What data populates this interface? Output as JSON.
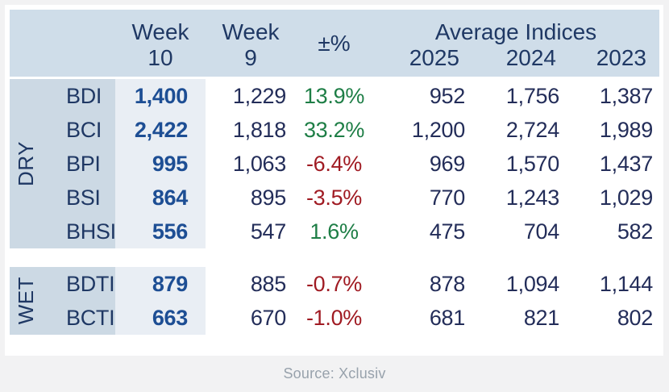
{
  "chart_data": {
    "type": "table",
    "header": {
      "week_cols": [
        {
          "line1": "Week",
          "line2": "10"
        },
        {
          "line1": "Week",
          "line2": "9"
        }
      ],
      "pct_label": "±%",
      "avg_title": "Average Indices",
      "avg_years": [
        "2025",
        "2024",
        "2023"
      ]
    },
    "groups": [
      {
        "name": "DRY",
        "rows": [
          {
            "label": "BDI",
            "week10": "1,400",
            "week9": "1,229",
            "pct": "13.9%",
            "direction": "positive",
            "avg": [
              "952",
              "1,756",
              "1,387"
            ]
          },
          {
            "label": "BCI",
            "week10": "2,422",
            "week9": "1,818",
            "pct": "33.2%",
            "direction": "positive",
            "avg": [
              "1,200",
              "2,724",
              "1,989"
            ]
          },
          {
            "label": "BPI",
            "week10": "995",
            "week9": "1,063",
            "pct": "-6.4%",
            "direction": "negative",
            "avg": [
              "969",
              "1,570",
              "1,437"
            ]
          },
          {
            "label": "BSI",
            "week10": "864",
            "week9": "895",
            "pct": "-3.5%",
            "direction": "negative",
            "avg": [
              "770",
              "1,243",
              "1,029"
            ]
          },
          {
            "label": "BHSI",
            "week10": "556",
            "week9": "547",
            "pct": "1.6%",
            "direction": "positive",
            "avg": [
              "475",
              "704",
              "582"
            ]
          }
        ]
      },
      {
        "name": "WET",
        "rows": [
          {
            "label": "BDTI",
            "week10": "879",
            "week9": "885",
            "pct": "-0.7%",
            "direction": "negative",
            "avg": [
              "878",
              "1,094",
              "1,144"
            ]
          },
          {
            "label": "BCTI",
            "week10": "663",
            "week9": "670",
            "pct": "-1.0%",
            "direction": "negative",
            "avg": [
              "681",
              "821",
              "802"
            ]
          }
        ]
      }
    ]
  },
  "footer": {
    "source": "Source: Xclusiv"
  },
  "colors": {
    "page_bg": "#f2f2f3",
    "header_bg": "#cfdde9",
    "label_bg": "#ccd9e4",
    "week10_bg": "#e9eef4",
    "navy": "#1f3864",
    "value_navy": "#232d59",
    "bold_blue": "#1d4e94",
    "positive": "#1e7e46",
    "negative": "#a01b23",
    "source_text": "#98a2ac"
  }
}
